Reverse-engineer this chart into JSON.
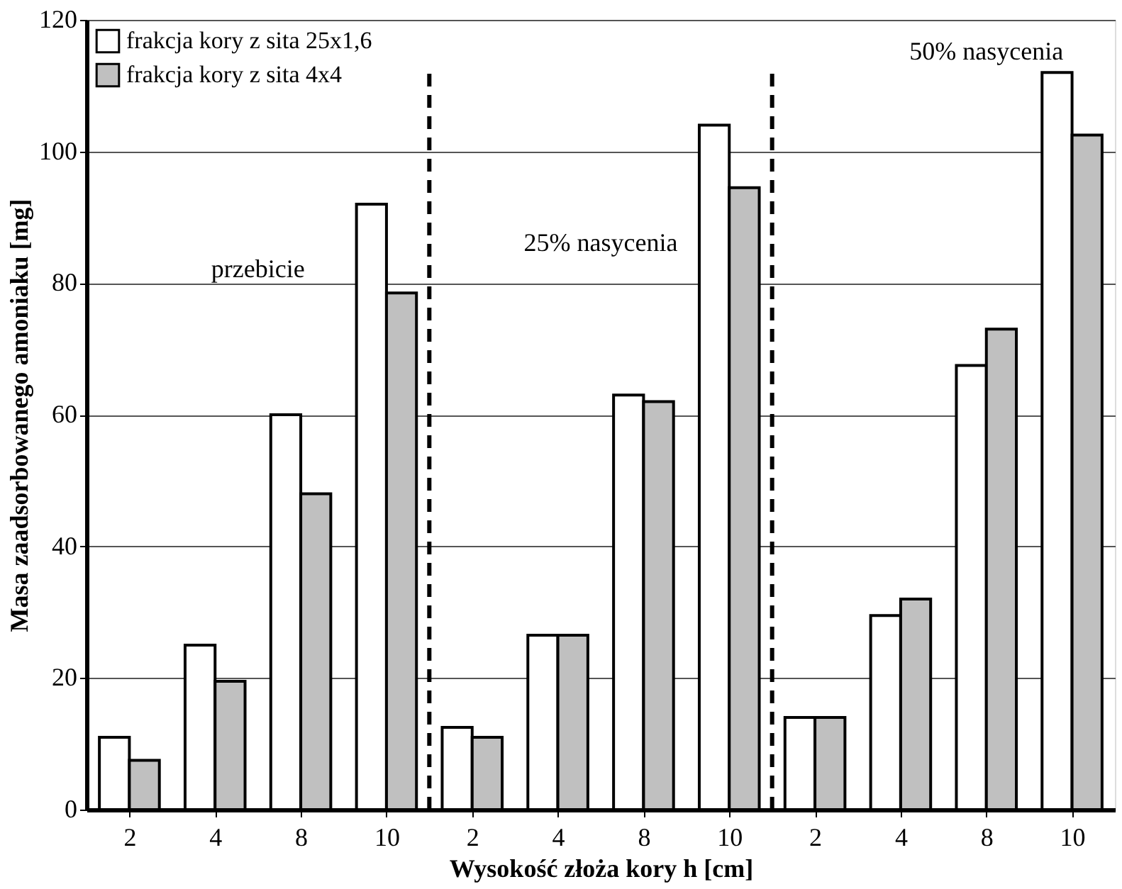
{
  "chart_data": {
    "type": "bar",
    "xlabel": "Wysokość złoża kory h [cm]",
    "ylabel": "Masa zaadsorbowanego amoniaku [mg]",
    "categories": [
      "2",
      "4",
      "8",
      "10",
      "2",
      "4",
      "8",
      "10",
      "2",
      "4",
      "8",
      "10"
    ],
    "series": [
      {
        "name": "frakcja kory z sita 25x1,6",
        "color": "#ffffff",
        "values": [
          11,
          25,
          60,
          92,
          12.5,
          26.5,
          63,
          104,
          14,
          29.5,
          67.5,
          112
        ]
      },
      {
        "name": "frakcja kory z sita 4x4",
        "color": "#c0c0c0",
        "values": [
          7.5,
          19.5,
          48,
          78.5,
          11,
          26.5,
          62,
          94.5,
          14,
          32,
          73,
          102.5
        ]
      }
    ],
    "ylim": [
      0,
      120
    ],
    "yticks": [
      0,
      20,
      40,
      60,
      80,
      100,
      120
    ],
    "grid": "y",
    "legend": "top left",
    "annotations": [
      "przebicie",
      "25% nasycenia",
      "50% nasycenia"
    ]
  }
}
